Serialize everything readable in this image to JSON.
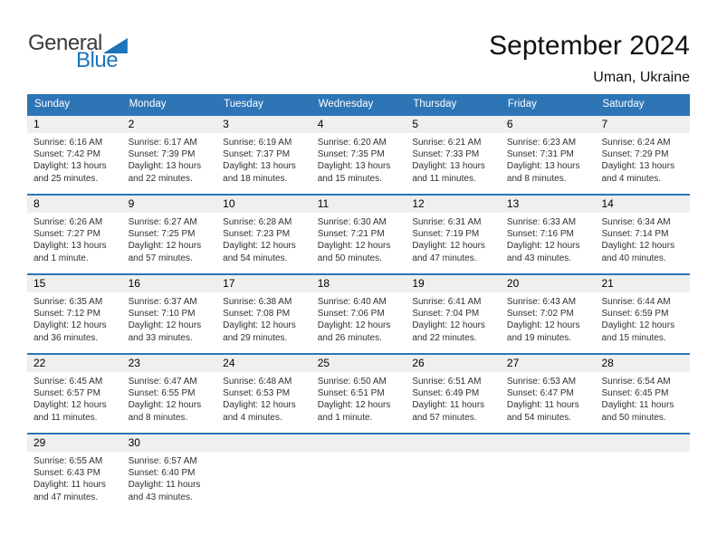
{
  "logo": {
    "text_general": "General",
    "text_blue": "Blue"
  },
  "header": {
    "title": "September 2024",
    "subtitle": "Uman, Ukraine"
  },
  "colors": {
    "accent_blue": "#2E75B6",
    "band_gray": "#EFEFEF",
    "logo_blue": "#1B75BC",
    "header_text": "#FFFFFF"
  },
  "weekdays": [
    "Sunday",
    "Monday",
    "Tuesday",
    "Wednesday",
    "Thursday",
    "Friday",
    "Saturday"
  ],
  "weeks": [
    [
      {
        "day": "1",
        "lines": [
          "Sunrise: 6:16 AM",
          "Sunset: 7:42 PM",
          "Daylight: 13 hours",
          "and 25 minutes."
        ]
      },
      {
        "day": "2",
        "lines": [
          "Sunrise: 6:17 AM",
          "Sunset: 7:39 PM",
          "Daylight: 13 hours",
          "and 22 minutes."
        ]
      },
      {
        "day": "3",
        "lines": [
          "Sunrise: 6:19 AM",
          "Sunset: 7:37 PM",
          "Daylight: 13 hours",
          "and 18 minutes."
        ]
      },
      {
        "day": "4",
        "lines": [
          "Sunrise: 6:20 AM",
          "Sunset: 7:35 PM",
          "Daylight: 13 hours",
          "and 15 minutes."
        ]
      },
      {
        "day": "5",
        "lines": [
          "Sunrise: 6:21 AM",
          "Sunset: 7:33 PM",
          "Daylight: 13 hours",
          "and 11 minutes."
        ]
      },
      {
        "day": "6",
        "lines": [
          "Sunrise: 6:23 AM",
          "Sunset: 7:31 PM",
          "Daylight: 13 hours",
          "and 8 minutes."
        ]
      },
      {
        "day": "7",
        "lines": [
          "Sunrise: 6:24 AM",
          "Sunset: 7:29 PM",
          "Daylight: 13 hours",
          "and 4 minutes."
        ]
      }
    ],
    [
      {
        "day": "8",
        "lines": [
          "Sunrise: 6:26 AM",
          "Sunset: 7:27 PM",
          "Daylight: 13 hours",
          "and 1 minute."
        ]
      },
      {
        "day": "9",
        "lines": [
          "Sunrise: 6:27 AM",
          "Sunset: 7:25 PM",
          "Daylight: 12 hours",
          "and 57 minutes."
        ]
      },
      {
        "day": "10",
        "lines": [
          "Sunrise: 6:28 AM",
          "Sunset: 7:23 PM",
          "Daylight: 12 hours",
          "and 54 minutes."
        ]
      },
      {
        "day": "11",
        "lines": [
          "Sunrise: 6:30 AM",
          "Sunset: 7:21 PM",
          "Daylight: 12 hours",
          "and 50 minutes."
        ]
      },
      {
        "day": "12",
        "lines": [
          "Sunrise: 6:31 AM",
          "Sunset: 7:19 PM",
          "Daylight: 12 hours",
          "and 47 minutes."
        ]
      },
      {
        "day": "13",
        "lines": [
          "Sunrise: 6:33 AM",
          "Sunset: 7:16 PM",
          "Daylight: 12 hours",
          "and 43 minutes."
        ]
      },
      {
        "day": "14",
        "lines": [
          "Sunrise: 6:34 AM",
          "Sunset: 7:14 PM",
          "Daylight: 12 hours",
          "and 40 minutes."
        ]
      }
    ],
    [
      {
        "day": "15",
        "lines": [
          "Sunrise: 6:35 AM",
          "Sunset: 7:12 PM",
          "Daylight: 12 hours",
          "and 36 minutes."
        ]
      },
      {
        "day": "16",
        "lines": [
          "Sunrise: 6:37 AM",
          "Sunset: 7:10 PM",
          "Daylight: 12 hours",
          "and 33 minutes."
        ]
      },
      {
        "day": "17",
        "lines": [
          "Sunrise: 6:38 AM",
          "Sunset: 7:08 PM",
          "Daylight: 12 hours",
          "and 29 minutes."
        ]
      },
      {
        "day": "18",
        "lines": [
          "Sunrise: 6:40 AM",
          "Sunset: 7:06 PM",
          "Daylight: 12 hours",
          "and 26 minutes."
        ]
      },
      {
        "day": "19",
        "lines": [
          "Sunrise: 6:41 AM",
          "Sunset: 7:04 PM",
          "Daylight: 12 hours",
          "and 22 minutes."
        ]
      },
      {
        "day": "20",
        "lines": [
          "Sunrise: 6:43 AM",
          "Sunset: 7:02 PM",
          "Daylight: 12 hours",
          "and 19 minutes."
        ]
      },
      {
        "day": "21",
        "lines": [
          "Sunrise: 6:44 AM",
          "Sunset: 6:59 PM",
          "Daylight: 12 hours",
          "and 15 minutes."
        ]
      }
    ],
    [
      {
        "day": "22",
        "lines": [
          "Sunrise: 6:45 AM",
          "Sunset: 6:57 PM",
          "Daylight: 12 hours",
          "and 11 minutes."
        ]
      },
      {
        "day": "23",
        "lines": [
          "Sunrise: 6:47 AM",
          "Sunset: 6:55 PM",
          "Daylight: 12 hours",
          "and 8 minutes."
        ]
      },
      {
        "day": "24",
        "lines": [
          "Sunrise: 6:48 AM",
          "Sunset: 6:53 PM",
          "Daylight: 12 hours",
          "and 4 minutes."
        ]
      },
      {
        "day": "25",
        "lines": [
          "Sunrise: 6:50 AM",
          "Sunset: 6:51 PM",
          "Daylight: 12 hours",
          "and 1 minute."
        ]
      },
      {
        "day": "26",
        "lines": [
          "Sunrise: 6:51 AM",
          "Sunset: 6:49 PM",
          "Daylight: 11 hours",
          "and 57 minutes."
        ]
      },
      {
        "day": "27",
        "lines": [
          "Sunrise: 6:53 AM",
          "Sunset: 6:47 PM",
          "Daylight: 11 hours",
          "and 54 minutes."
        ]
      },
      {
        "day": "28",
        "lines": [
          "Sunrise: 6:54 AM",
          "Sunset: 6:45 PM",
          "Daylight: 11 hours",
          "and 50 minutes."
        ]
      }
    ],
    [
      {
        "day": "29",
        "lines": [
          "Sunrise: 6:55 AM",
          "Sunset: 6:43 PM",
          "Daylight: 11 hours",
          "and 47 minutes."
        ]
      },
      {
        "day": "30",
        "lines": [
          "Sunrise: 6:57 AM",
          "Sunset: 6:40 PM",
          "Daylight: 11 hours",
          "and 43 minutes."
        ]
      },
      null,
      null,
      null,
      null,
      null
    ]
  ]
}
